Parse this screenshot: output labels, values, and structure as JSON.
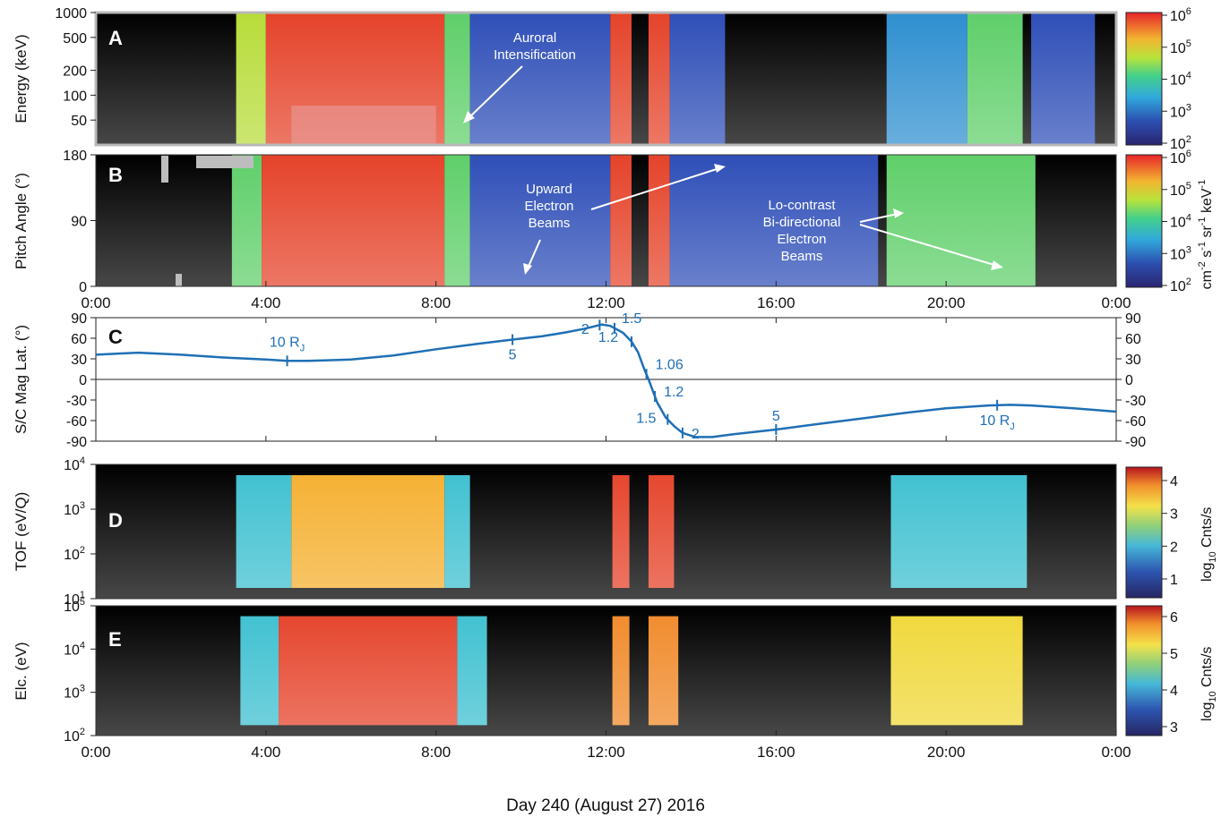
{
  "figure": {
    "x_caption": "Day 240 (August 27) 2016",
    "time_ticks": [
      "0:00",
      "4:00",
      "8:00",
      "12:00",
      "16:00",
      "20:00",
      "0:00"
    ]
  },
  "chart_data": [
    {
      "panel": "A",
      "type": "heatmap",
      "ylabel": "Energy (keV)",
      "yscale": "log",
      "ylim": [
        25,
        1000
      ],
      "yticks": [
        "1000",
        "500",
        "200",
        "100",
        "50"
      ],
      "x_unit": "hours",
      "xlim": [
        0,
        24
      ],
      "annotation": "Auroral Intensification",
      "regions": [
        {
          "from": 3.3,
          "to": 4.0,
          "level": "green-yellow"
        },
        {
          "from": 4.0,
          "to": 8.2,
          "level": "red"
        },
        {
          "from": 8.2,
          "to": 8.8,
          "level": "green"
        },
        {
          "from": 8.8,
          "to": 12.1,
          "level": "blue"
        },
        {
          "from": 12.1,
          "to": 12.6,
          "level": "red"
        },
        {
          "from": 13.0,
          "to": 13.5,
          "level": "red"
        },
        {
          "from": 13.5,
          "to": 14.8,
          "level": "blue"
        },
        {
          "from": 18.6,
          "to": 20.5,
          "level": "blue-cyan"
        },
        {
          "from": 20.5,
          "to": 21.8,
          "level": "green"
        },
        {
          "from": 22.0,
          "to": 23.5,
          "level": "blue"
        }
      ]
    },
    {
      "panel": "B",
      "type": "heatmap",
      "ylabel": "Pitch Angle (°)",
      "ylim": [
        0,
        180
      ],
      "yticks": [
        "180",
        "90",
        "0"
      ],
      "x_unit": "hours",
      "xlim": [
        0,
        24
      ],
      "annotations": [
        "Upward Electron Beams",
        "Lo-contrast Bi-directional Electron Beams"
      ],
      "regions": [
        {
          "from": 3.2,
          "to": 3.9,
          "level": "green"
        },
        {
          "from": 3.9,
          "to": 8.2,
          "level": "red"
        },
        {
          "from": 8.2,
          "to": 8.8,
          "level": "green"
        },
        {
          "from": 8.8,
          "to": 12.1,
          "level": "blue"
        },
        {
          "from": 12.1,
          "to": 12.6,
          "level": "red"
        },
        {
          "from": 13.0,
          "to": 13.5,
          "level": "red"
        },
        {
          "from": 13.5,
          "to": 18.4,
          "level": "blue"
        },
        {
          "from": 18.6,
          "to": 22.1,
          "level": "green"
        }
      ]
    },
    {
      "panel": "C",
      "type": "line",
      "ylabel": "S/C Mag Lat. (°)",
      "ylim": [
        -90,
        90
      ],
      "yticks": [
        "90",
        "60",
        "30",
        "0",
        "-30",
        "-60",
        "-90"
      ],
      "x_unit": "hours",
      "xlim": [
        0,
        24
      ],
      "x": [
        0,
        1,
        2,
        3,
        4,
        4.5,
        5,
        6,
        7,
        8,
        9,
        9.8,
        10.5,
        11,
        11.5,
        11.9,
        12.1,
        12.4,
        12.6,
        12.75,
        12.9,
        13.0,
        13.2,
        13.4,
        13.6,
        13.8,
        14.1,
        14.5,
        15,
        16,
        17,
        18,
        19,
        20,
        21,
        21.5,
        22,
        23,
        24
      ],
      "y": [
        36,
        39,
        36,
        32,
        29,
        27,
        27,
        29,
        35,
        44,
        52,
        58,
        63,
        68,
        74,
        80,
        78,
        68,
        55,
        40,
        15,
        0,
        -33,
        -55,
        -68,
        -78,
        -84,
        -84,
        -80,
        -73,
        -65,
        -57,
        -49,
        -42,
        -38,
        -37,
        -38,
        -42,
        -47
      ],
      "markers": [
        {
          "x": 4.5,
          "label": "10 R",
          "sub": "J"
        },
        {
          "x": 9.8,
          "label": "5"
        },
        {
          "x": 11.85,
          "label": "2"
        },
        {
          "x": 12.2,
          "label": "1.5"
        },
        {
          "x": 12.6,
          "label": "1.2"
        },
        {
          "x": 12.95,
          "label": "1.06"
        },
        {
          "x": 13.15,
          "label": "1.2"
        },
        {
          "x": 13.45,
          "label": "1.5"
        },
        {
          "x": 13.8,
          "label": "2"
        },
        {
          "x": 16.0,
          "label": "5"
        },
        {
          "x": 21.2,
          "label": "10 R",
          "sub": "J"
        }
      ]
    },
    {
      "panel": "D",
      "type": "heatmap",
      "ylabel": "TOF (eV/Q)",
      "yscale": "log",
      "ylim": [
        10,
        10000
      ],
      "yticks": [
        "4",
        "3",
        "2",
        "1"
      ],
      "ytick_base": "10",
      "x_unit": "hours",
      "xlim": [
        0,
        24
      ],
      "regions": [
        {
          "from": 3.3,
          "to": 4.6,
          "level": "cyan"
        },
        {
          "from": 4.6,
          "to": 8.2,
          "level": "yellow-orange"
        },
        {
          "from": 8.2,
          "to": 8.8,
          "level": "cyan"
        },
        {
          "from": 12.15,
          "to": 12.55,
          "level": "red"
        },
        {
          "from": 13.0,
          "to": 13.6,
          "level": "red"
        },
        {
          "from": 18.7,
          "to": 21.9,
          "level": "cyan"
        }
      ]
    },
    {
      "panel": "E",
      "type": "heatmap",
      "ylabel": "Elc. (eV)",
      "yscale": "log",
      "ylim": [
        100,
        100000
      ],
      "yticks": [
        "5",
        "4",
        "3",
        "2"
      ],
      "ytick_base": "10",
      "x_unit": "hours",
      "xlim": [
        0,
        24
      ],
      "regions": [
        {
          "from": 3.4,
          "to": 4.3,
          "level": "cyan"
        },
        {
          "from": 4.3,
          "to": 8.5,
          "level": "red"
        },
        {
          "from": 8.5,
          "to": 9.2,
          "level": "cyan"
        },
        {
          "from": 12.15,
          "to": 12.55,
          "level": "orange"
        },
        {
          "from": 13.0,
          "to": 13.7,
          "level": "orange"
        },
        {
          "from": 18.7,
          "to": 21.8,
          "level": "yellow"
        }
      ]
    }
  ],
  "colorbars": [
    {
      "name": "flux",
      "ticks": [
        "6",
        "5",
        "4",
        "3",
        "2"
      ],
      "base": "10",
      "label_parts": [
        "cm",
        "-2",
        " s",
        "-1",
        " sr",
        "-1",
        " keV",
        "-1"
      ]
    },
    {
      "name": "tof",
      "ticks": [
        "4",
        "3",
        "2",
        "1"
      ],
      "label": "log",
      "label_sub": "10",
      "label_rest": " Cnts/s"
    },
    {
      "name": "elc",
      "ticks": [
        "6",
        "5",
        "4",
        "3"
      ],
      "label": "log",
      "label_sub": "10",
      "label_rest": " Cnts/s"
    }
  ],
  "colors": {
    "jet": [
      "#1a1a7a",
      "#2a3fb0",
      "#2f6fd0",
      "#2fb8e0",
      "#43c9a0",
      "#9fdc3a",
      "#f0e53a",
      "#f59a2a",
      "#e84a2a",
      "#c81e1e"
    ],
    "spec": [
      "#2a2a6e",
      "#2b4aa5",
      "#3d8fd0",
      "#48c0c8",
      "#8fd070",
      "#f0e050",
      "#f5a030",
      "#e84a28",
      "#c01818"
    ],
    "orbit": "#1f6fb4"
  }
}
